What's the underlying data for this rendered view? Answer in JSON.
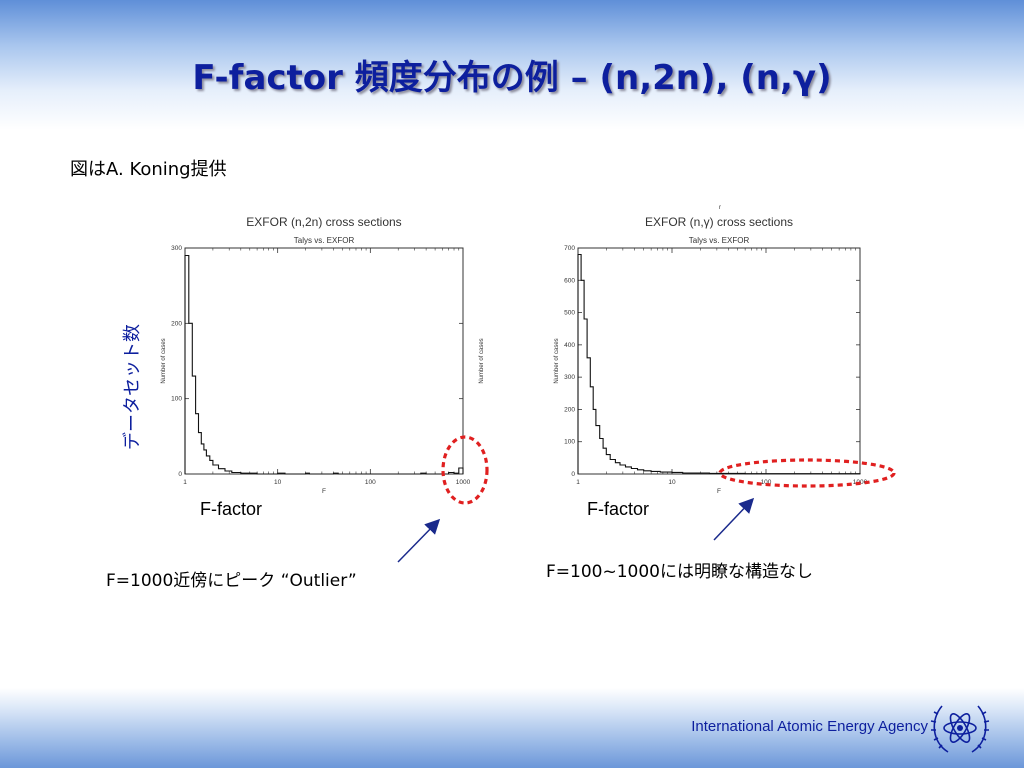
{
  "slide": {
    "title": "F-factor 頻度分布の例 – (n,2n), (n,γ)",
    "subtitle": "図はA. Koning提供",
    "ylabel": "データセット数",
    "annotation_left": "F=1000近傍にピーク “Outlier”",
    "annotation_right": "F=100~1000には明瞭な構造なし",
    "footer": "International Atomic Energy Agency",
    "colors": {
      "title": "#0d1f9e",
      "highlight": "#e02020",
      "arrow": "#1a2a8c"
    },
    "logo_icon": "un-emblem-icon"
  },
  "chart_data": [
    {
      "type": "histogram",
      "title": "EXFOR (n,2n) cross sections",
      "subtitle": "Talys vs. EXFOR",
      "xlabel": "F",
      "xlabel_below": "F-factor",
      "ylabel": "Number of cases",
      "ylabel_right": "Number of cases",
      "xscale": "log",
      "xlim": [
        1,
        1000
      ],
      "ylim": [
        0,
        300
      ],
      "yticks": [
        0,
        100,
        200,
        300
      ],
      "xticks": [
        1,
        10,
        100,
        1000
      ],
      "xtick_labels": [
        "1",
        "10",
        "100",
        "1000"
      ],
      "bins": [
        [
          1.0,
          290
        ],
        [
          1.1,
          200
        ],
        [
          1.2,
          130
        ],
        [
          1.3,
          80
        ],
        [
          1.4,
          55
        ],
        [
          1.5,
          40
        ],
        [
          1.6,
          32
        ],
        [
          1.7,
          24
        ],
        [
          1.85,
          18
        ],
        [
          2.0,
          12
        ],
        [
          2.3,
          7
        ],
        [
          2.7,
          4
        ],
        [
          3.2,
          2
        ],
        [
          4.0,
          1
        ],
        [
          6.0,
          0
        ],
        [
          10.0,
          1
        ],
        [
          12.0,
          0
        ],
        [
          20.0,
          1
        ],
        [
          22.0,
          0
        ],
        [
          40.0,
          1
        ],
        [
          45.0,
          0
        ],
        [
          350.0,
          1
        ],
        [
          400.0,
          0
        ],
        [
          700.0,
          2
        ],
        [
          800.0,
          1
        ],
        [
          900.0,
          8
        ],
        [
          1000.0,
          0
        ]
      ],
      "highlight": {
        "shape": "circle",
        "x_center": 1000,
        "label": "Outlier"
      }
    },
    {
      "type": "histogram",
      "title": "EXFOR (n,γ) cross sections",
      "subtitle": "Talys vs. EXFOR",
      "xlabel": "F",
      "xlabel_below": "F-factor",
      "ylabel": "Number of cases",
      "xscale": "log",
      "xlim": [
        1,
        1000
      ],
      "ylim": [
        0,
        700
      ],
      "yticks": [
        0,
        100,
        200,
        300,
        400,
        500,
        600,
        700
      ],
      "xticks": [
        1,
        10,
        100,
        1000
      ],
      "xtick_labels": [
        "1",
        "10",
        "100",
        "1000"
      ],
      "bins": [
        [
          1.0,
          680
        ],
        [
          1.08,
          600
        ],
        [
          1.16,
          480
        ],
        [
          1.25,
          360
        ],
        [
          1.35,
          270
        ],
        [
          1.45,
          200
        ],
        [
          1.55,
          150
        ],
        [
          1.7,
          110
        ],
        [
          1.85,
          80
        ],
        [
          2.0,
          60
        ],
        [
          2.2,
          45
        ],
        [
          2.5,
          35
        ],
        [
          2.8,
          28
        ],
        [
          3.2,
          22
        ],
        [
          3.7,
          17
        ],
        [
          4.3,
          13
        ],
        [
          5.0,
          10
        ],
        [
          6.0,
          8
        ],
        [
          7.5,
          6
        ],
        [
          10.0,
          5
        ],
        [
          13.0,
          3
        ],
        [
          18.0,
          3
        ],
        [
          25.0,
          2
        ],
        [
          40.0,
          2
        ],
        [
          60.0,
          1
        ],
        [
          100.0,
          1
        ],
        [
          200.0,
          1
        ],
        [
          400.0,
          1
        ],
        [
          700.0,
          1
        ],
        [
          1000.0,
          0
        ]
      ],
      "highlight": {
        "shape": "ellipse",
        "x_range": [
          100,
          1000
        ],
        "label": "no clear structure"
      }
    }
  ]
}
